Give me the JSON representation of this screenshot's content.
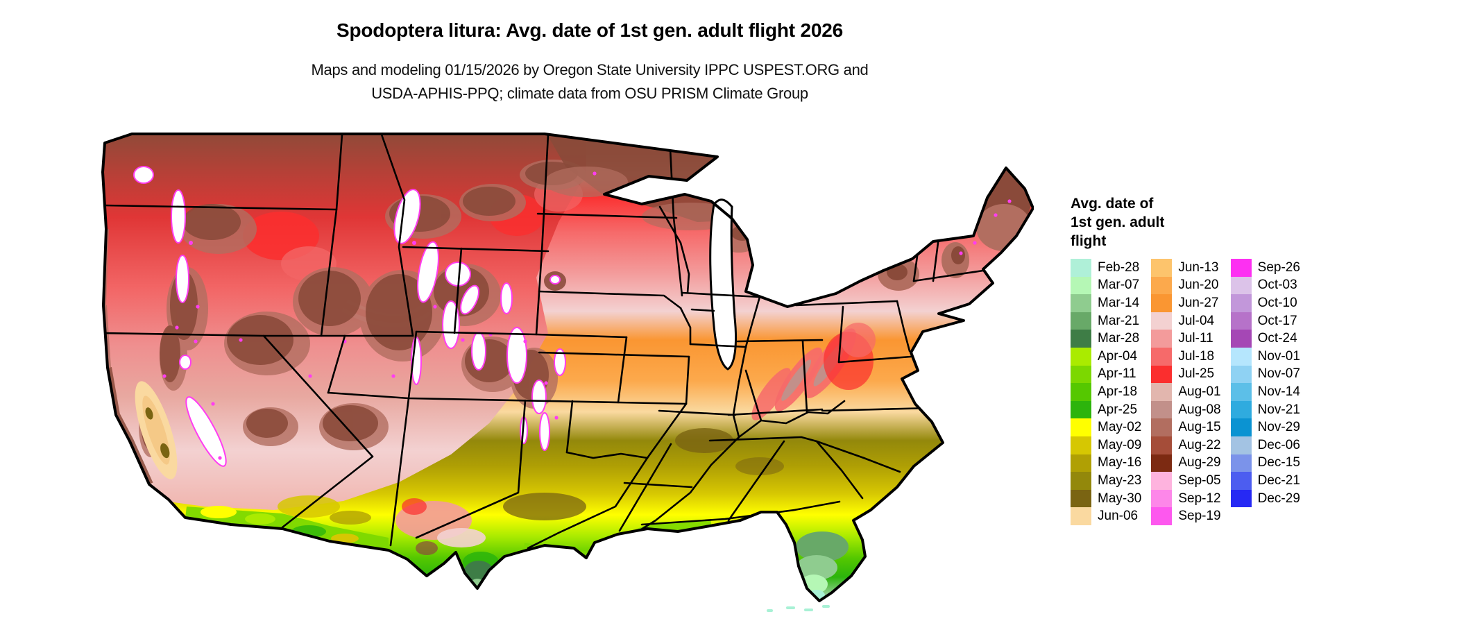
{
  "title": "Spodoptera litura: Avg. date of 1st gen. adult flight 2026",
  "subtitle_line1": "Maps and modeling 01/15/2026 by Oregon State University IPPC USPEST.ORG and",
  "subtitle_line2": "USDA-APHIS-PPQ; climate data from OSU PRISM Climate Group",
  "map": {
    "region": "Continental United States",
    "kind": "raster choropleth of average date of first generation adult flight"
  },
  "legend": {
    "title_lines": [
      "Avg. date of",
      "1st gen. adult",
      "flight"
    ],
    "columns": [
      {
        "entries": [
          {
            "label": "Feb-28",
            "color": "#aff0d8"
          },
          {
            "label": "Mar-07",
            "color": "#b5f7b5"
          },
          {
            "label": "Mar-14",
            "color": "#8fcc8f"
          },
          {
            "label": "Mar-21",
            "color": "#68a968"
          },
          {
            "label": "Mar-28",
            "color": "#3e7d46"
          },
          {
            "label": "Apr-04",
            "color": "#aaeb00"
          },
          {
            "label": "Apr-11",
            "color": "#7cd800"
          },
          {
            "label": "Apr-18",
            "color": "#55c800"
          },
          {
            "label": "Apr-25",
            "color": "#2cb40c"
          },
          {
            "label": "May-02",
            "color": "#ffff00"
          },
          {
            "label": "May-09",
            "color": "#d6c702"
          },
          {
            "label": "May-16",
            "color": "#b0a004"
          },
          {
            "label": "May-23",
            "color": "#93880b"
          },
          {
            "label": "May-30",
            "color": "#7a6412"
          },
          {
            "label": "Jun-06",
            "color": "#fad9a0"
          }
        ]
      },
      {
        "entries": [
          {
            "label": "Jun-13",
            "color": "#fdc46c"
          },
          {
            "label": "Jun-20",
            "color": "#fca94c"
          },
          {
            "label": "Jun-27",
            "color": "#fa9632"
          },
          {
            "label": "Jul-04",
            "color": "#f3d1d1"
          },
          {
            "label": "Jul-11",
            "color": "#f39b9b"
          },
          {
            "label": "Jul-18",
            "color": "#f66a6a"
          },
          {
            "label": "Jul-25",
            "color": "#fb2e2e"
          },
          {
            "label": "Aug-01",
            "color": "#e2b6ae"
          },
          {
            "label": "Aug-08",
            "color": "#c2908a"
          },
          {
            "label": "Aug-15",
            "color": "#b26e60"
          },
          {
            "label": "Aug-22",
            "color": "#a54d39"
          },
          {
            "label": "Aug-29",
            "color": "#7c2a12"
          },
          {
            "label": "Sep-05",
            "color": "#feb3de"
          },
          {
            "label": "Sep-12",
            "color": "#fd87e9"
          },
          {
            "label": "Sep-19",
            "color": "#fd58ee"
          }
        ]
      },
      {
        "entries": [
          {
            "label": "Sep-26",
            "color": "#fd30f2"
          },
          {
            "label": "Oct-03",
            "color": "#dcc3e9"
          },
          {
            "label": "Oct-10",
            "color": "#c297da"
          },
          {
            "label": "Oct-17",
            "color": "#b672c9"
          },
          {
            "label": "Oct-24",
            "color": "#a547b5"
          },
          {
            "label": "Nov-01",
            "color": "#b5e6fd"
          },
          {
            "label": "Nov-07",
            "color": "#8fd2f3"
          },
          {
            "label": "Nov-14",
            "color": "#5cbfe8"
          },
          {
            "label": "Nov-21",
            "color": "#2fabdf"
          },
          {
            "label": "Nov-29",
            "color": "#0b93d2"
          },
          {
            "label": "Dec-06",
            "color": "#a3c3e3"
          },
          {
            "label": "Dec-15",
            "color": "#7b93ea"
          },
          {
            "label": "Dec-21",
            "color": "#4c5df0"
          },
          {
            "label": "Dec-29",
            "color": "#2629f4"
          }
        ]
      }
    ]
  }
}
